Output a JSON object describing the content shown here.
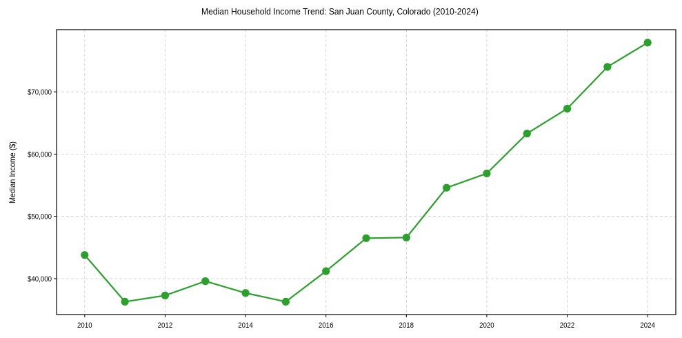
{
  "chart_data": {
    "type": "line",
    "title": "Median Household Income Trend: San Juan County, Colorado (2010-2024)",
    "xlabel": "",
    "ylabel": "Median Income ($)",
    "x": [
      2010,
      2011,
      2012,
      2013,
      2014,
      2015,
      2016,
      2017,
      2018,
      2019,
      2020,
      2021,
      2022,
      2023,
      2024
    ],
    "series": [
      {
        "name": "Median Household Income",
        "color": "#2ca02c",
        "marker": "circle",
        "values": [
          43800,
          36300,
          37300,
          39600,
          37700,
          36300,
          41200,
          46500,
          46600,
          54600,
          56900,
          63300,
          67300,
          74000,
          77900
        ]
      }
    ],
    "x_ticks": [
      2010,
      2012,
      2014,
      2016,
      2018,
      2020,
      2022,
      2024
    ],
    "y_ticks": [
      40000,
      50000,
      60000,
      70000
    ],
    "y_tick_labels": [
      "$40,000",
      "$50,000",
      "$60,000",
      "$70,000"
    ],
    "xlim": [
      2009.3,
      2024.7
    ],
    "ylim": [
      34240,
      79980
    ],
    "grid": true,
    "grid_style": "dashed",
    "legend": null
  }
}
